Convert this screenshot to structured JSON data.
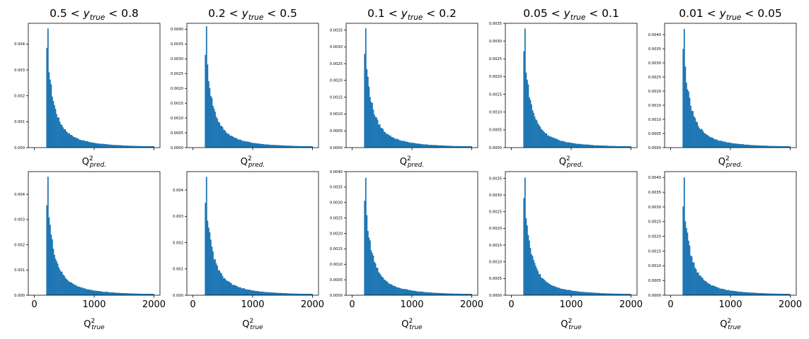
{
  "figure": {
    "bar_color": "#1f77b4",
    "x_range": [
      -100,
      2100
    ],
    "x_ticks": [
      0,
      1000,
      2000
    ]
  },
  "column_titles": [
    {
      "pre": "0.5 < ",
      "var": "y",
      "sub": "true",
      "post": " < 0.8"
    },
    {
      "pre": "0.2 < ",
      "var": "y",
      "sub": "true",
      "post": " < 0.5"
    },
    {
      "pre": "0.1 < ",
      "var": "y",
      "sub": "true",
      "post": " < 0.2"
    },
    {
      "pre": "0.05 < ",
      "var": "y",
      "sub": "true",
      "post": " < 0.1"
    },
    {
      "pre": "0.01 < ",
      "var": "y",
      "sub": "true",
      "post": " < 0.05"
    }
  ],
  "row_xlabels": [
    {
      "base": "Q",
      "sup": "2",
      "sub": "pred."
    },
    {
      "base": "Q",
      "sup": "2",
      "sub": "true"
    }
  ],
  "chart_data": [
    {
      "type": "bar",
      "row": 0,
      "col": 0,
      "hist_start": 200,
      "hist_end": 2000,
      "bin_count": 100,
      "peak_value": 0.0046,
      "ylim": [
        0,
        0.0048
      ],
      "y_ticks": [
        "0.000",
        "0.001",
        "0.002",
        "0.003",
        "0.004"
      ]
    },
    {
      "type": "bar",
      "row": 0,
      "col": 1,
      "hist_start": 200,
      "hist_end": 2000,
      "bin_count": 100,
      "peak_value": 0.0041,
      "ylim": [
        0,
        0.0042
      ],
      "y_ticks": [
        "0.0000",
        "0.0005",
        "0.0010",
        "0.0015",
        "0.0020",
        "0.0025",
        "0.0030",
        "0.0035",
        "0.0040"
      ]
    },
    {
      "type": "bar",
      "row": 0,
      "col": 2,
      "hist_start": 200,
      "hist_end": 2000,
      "bin_count": 100,
      "peak_value": 0.00355,
      "ylim": [
        0,
        0.0037
      ],
      "y_ticks": [
        "0.0000",
        "0.0005",
        "0.0010",
        "0.0015",
        "0.0020",
        "0.0025",
        "0.0030",
        "0.0035"
      ]
    },
    {
      "type": "bar",
      "row": 0,
      "col": 3,
      "hist_start": 200,
      "hist_end": 2000,
      "bin_count": 100,
      "peak_value": 0.00335,
      "ylim": [
        0,
        0.0035
      ],
      "y_ticks": [
        "0.0000",
        "0.0005",
        "0.0010",
        "0.0015",
        "0.0020",
        "0.0025",
        "0.0030",
        "0.0035"
      ]
    },
    {
      "type": "bar",
      "row": 0,
      "col": 4,
      "hist_start": 200,
      "hist_end": 2000,
      "bin_count": 100,
      "peak_value": 0.0042,
      "ylim": [
        0,
        0.0044
      ],
      "y_ticks": [
        "0.0000",
        "0.0005",
        "0.0010",
        "0.0015",
        "0.0020",
        "0.0025",
        "0.0030",
        "0.0035",
        "0.0040"
      ]
    },
    {
      "type": "bar",
      "row": 1,
      "col": 0,
      "hist_start": 200,
      "hist_end": 2000,
      "bin_count": 100,
      "peak_value": 0.0047,
      "ylim": [
        0,
        0.0049
      ],
      "y_ticks": [
        "0.000",
        "0.001",
        "0.002",
        "0.003",
        "0.004"
      ]
    },
    {
      "type": "bar",
      "row": 1,
      "col": 1,
      "hist_start": 200,
      "hist_end": 2000,
      "bin_count": 100,
      "peak_value": 0.0045,
      "ylim": [
        0,
        0.0047
      ],
      "y_ticks": [
        "0.000",
        "0.001",
        "0.002",
        "0.003",
        "0.004"
      ]
    },
    {
      "type": "bar",
      "row": 1,
      "col": 2,
      "hist_start": 200,
      "hist_end": 2000,
      "bin_count": 100,
      "peak_value": 0.0038,
      "ylim": [
        0,
        0.004
      ],
      "y_ticks": [
        "0.0000",
        "0.0005",
        "0.0010",
        "0.0015",
        "0.0020",
        "0.0025",
        "0.0030",
        "0.0035",
        "0.0040"
      ]
    },
    {
      "type": "bar",
      "row": 1,
      "col": 3,
      "hist_start": 200,
      "hist_end": 2000,
      "bin_count": 100,
      "peak_value": 0.00352,
      "ylim": [
        0,
        0.0037
      ],
      "y_ticks": [
        "0.0000",
        "0.0005",
        "0.0010",
        "0.0015",
        "0.0020",
        "0.0025",
        "0.0030",
        "0.0035"
      ]
    },
    {
      "type": "bar",
      "row": 1,
      "col": 4,
      "hist_start": 200,
      "hist_end": 2000,
      "bin_count": 100,
      "peak_value": 0.004,
      "ylim": [
        0,
        0.0042
      ],
      "y_ticks": [
        "0.0000",
        "0.0005",
        "0.0010",
        "0.0015",
        "0.0020",
        "0.0025",
        "0.0030",
        "0.0035",
        "0.0040"
      ]
    }
  ]
}
